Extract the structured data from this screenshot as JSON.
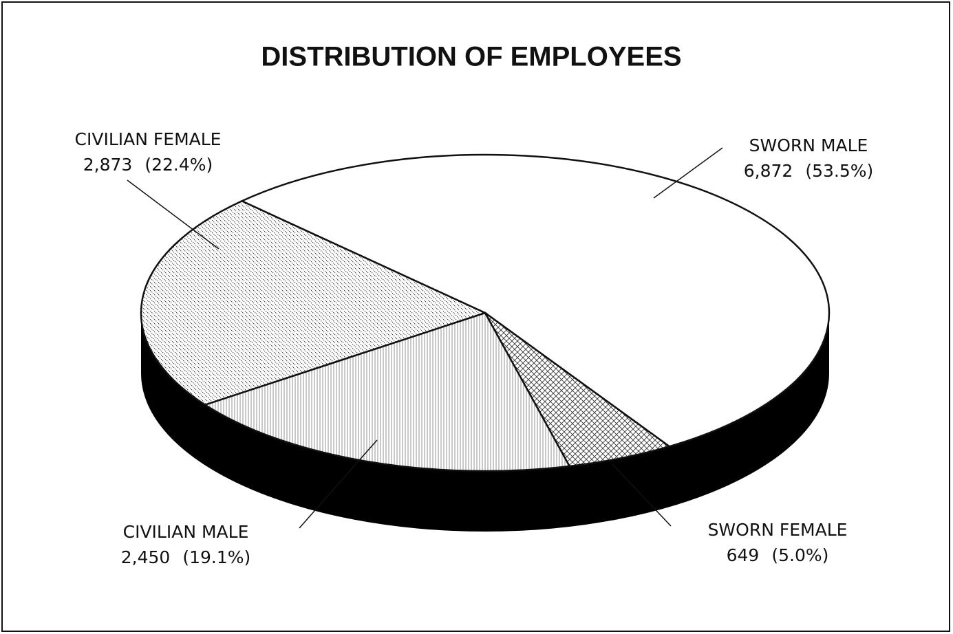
{
  "chart_data": {
    "type": "pie",
    "title": "DISTRIBUTION OF EMPLOYEES",
    "categories": [
      "SWORN MALE",
      "SWORN FEMALE",
      "CIVILIAN MALE",
      "CIVILIAN FEMALE"
    ],
    "values": [
      6872,
      649,
      2450,
      2873
    ],
    "value_labels": [
      "6,872",
      "649",
      "2,450",
      "2,873"
    ],
    "percents": [
      53.5,
      5.0,
      19.1,
      22.4
    ],
    "percent_labels": [
      "(53.5%)",
      "(5.0%)",
      "(19.1%)",
      "(22.4%)"
    ],
    "colors": [
      "#ffffff",
      "#ffffff",
      "#ffffff",
      "#ffffff"
    ]
  }
}
